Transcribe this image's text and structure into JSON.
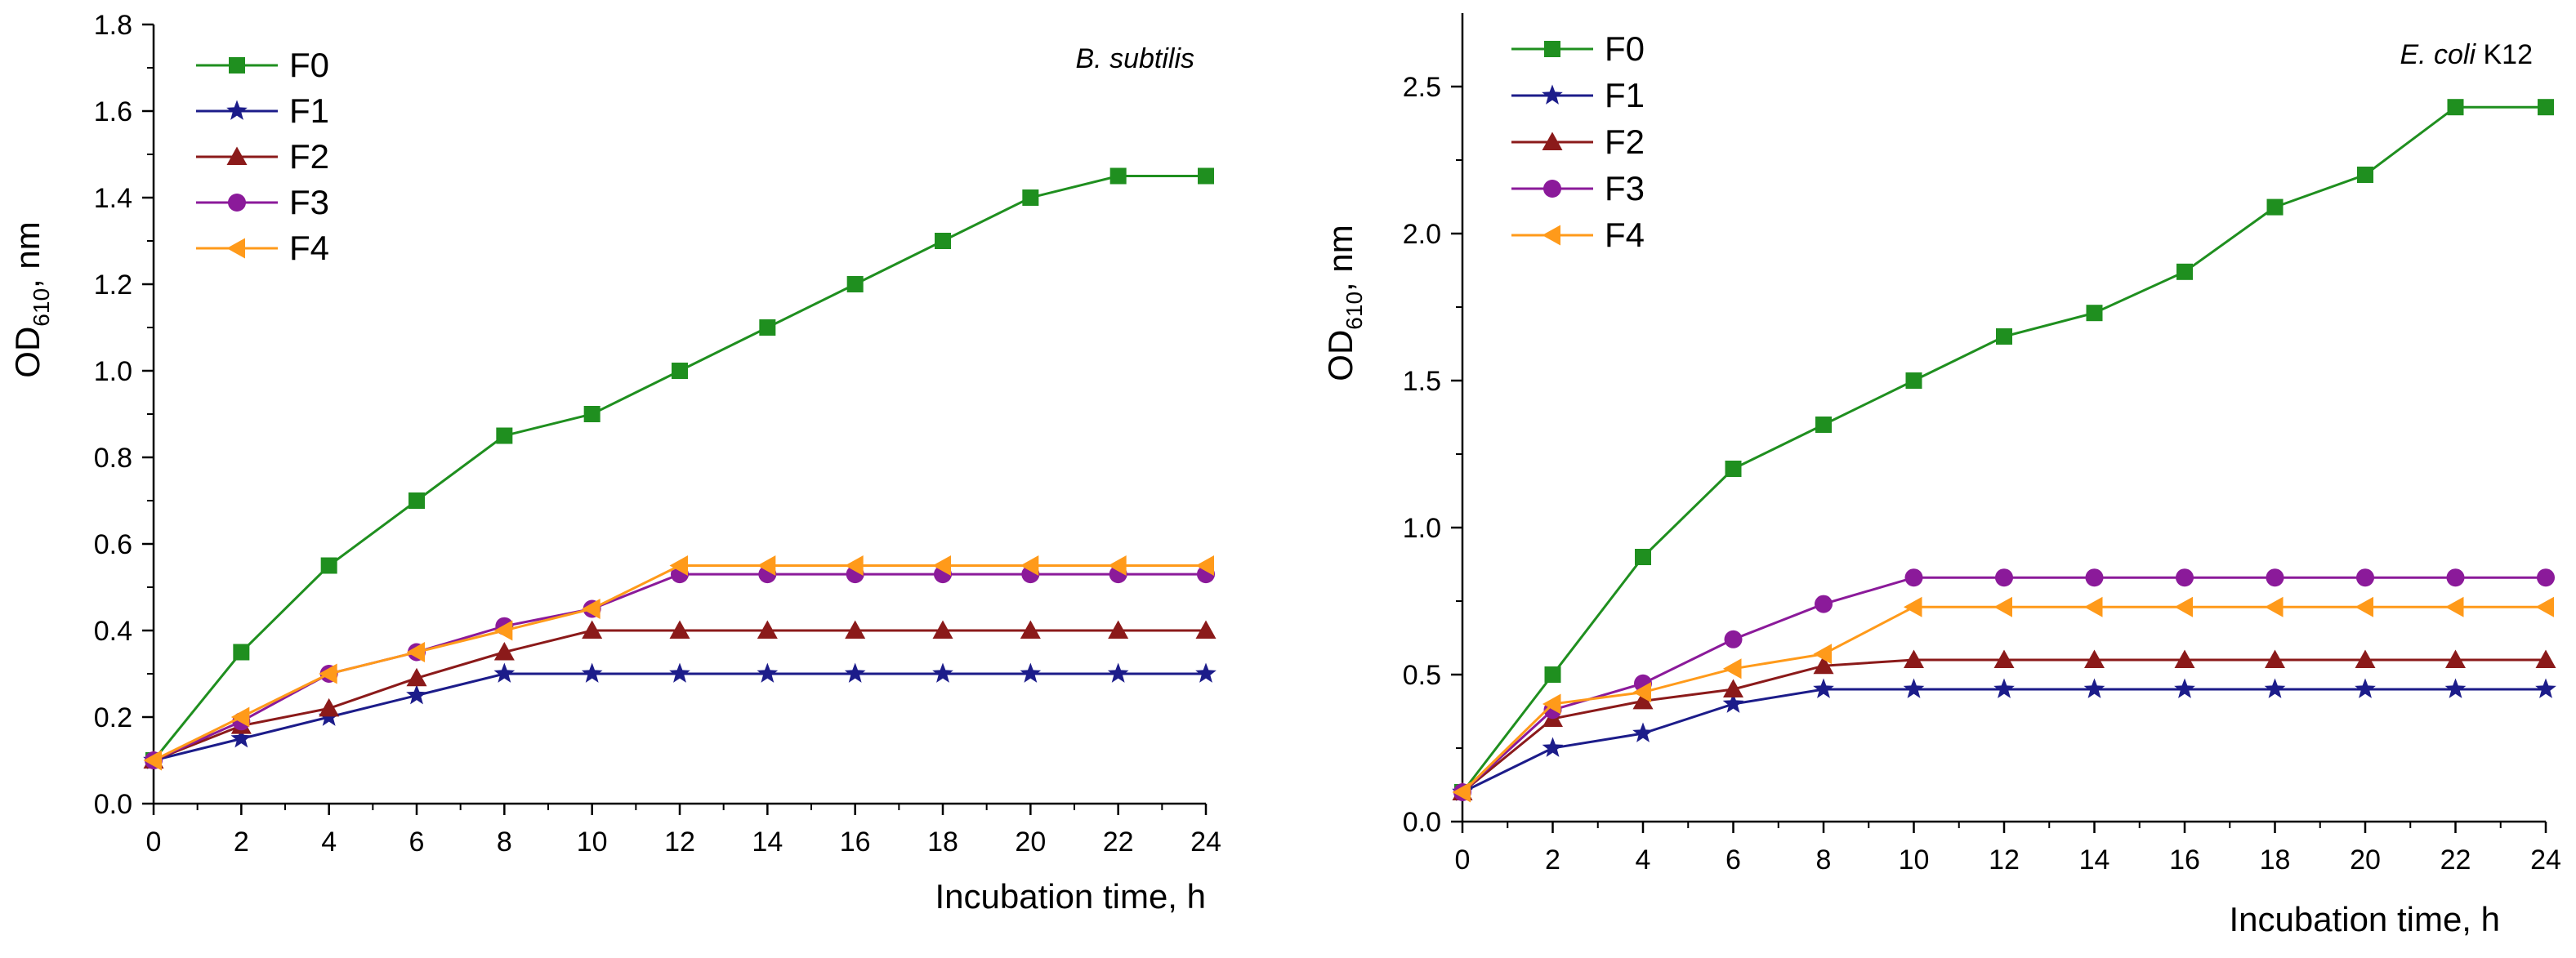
{
  "chart_data": [
    {
      "type": "line",
      "annotation_italic": "B. subtilis",
      "annotation_rest": "",
      "xlabel": "Incubation time, h",
      "ylabel_main": "OD",
      "ylabel_sub": "610",
      "ylabel_rest": ", nm",
      "xlim": [
        0,
        24
      ],
      "ylim": [
        0,
        1.8
      ],
      "xticks": [
        "0",
        "2",
        "4",
        "6",
        "8",
        "10",
        "12",
        "14",
        "16",
        "18",
        "20",
        "22",
        "24"
      ],
      "yticks": [
        "0.0",
        "0.2",
        "0.4",
        "0.6",
        "0.8",
        "1.0",
        "1.2",
        "1.4",
        "1.6",
        "1.8"
      ],
      "grid": false,
      "legend_position": "top-left",
      "x": [
        0,
        2,
        4,
        6,
        8,
        10,
        12,
        14,
        16,
        18,
        20,
        22,
        24
      ],
      "series": [
        {
          "name": "F0",
          "color": "#1f8f1f",
          "marker": "square",
          "values": [
            0.1,
            0.35,
            0.55,
            0.7,
            0.85,
            0.9,
            1.0,
            1.1,
            1.2,
            1.3,
            1.4,
            1.45,
            1.45
          ]
        },
        {
          "name": "F1",
          "color": "#1c1c8a",
          "marker": "star",
          "values": [
            0.1,
            0.15,
            0.2,
            0.25,
            0.3,
            0.3,
            0.3,
            0.3,
            0.3,
            0.3,
            0.3,
            0.3,
            0.3
          ]
        },
        {
          "name": "F2",
          "color": "#8b1a1a",
          "marker": "triangle",
          "values": [
            0.1,
            0.18,
            0.22,
            0.29,
            0.35,
            0.4,
            0.4,
            0.4,
            0.4,
            0.4,
            0.4,
            0.4,
            0.4
          ]
        },
        {
          "name": "F3",
          "color": "#8b1a9a",
          "marker": "circle",
          "values": [
            0.1,
            0.19,
            0.3,
            0.35,
            0.41,
            0.45,
            0.53,
            0.53,
            0.53,
            0.53,
            0.53,
            0.53,
            0.53
          ]
        },
        {
          "name": "F4",
          "color": "#ff9a1a",
          "marker": "tri-left",
          "values": [
            0.1,
            0.2,
            0.3,
            0.35,
            0.4,
            0.45,
            0.55,
            0.55,
            0.55,
            0.55,
            0.55,
            0.55,
            0.55
          ]
        }
      ]
    },
    {
      "type": "line",
      "annotation_italic": "E. coli",
      "annotation_rest": " K12",
      "xlabel": "Incubation time, h",
      "ylabel_main": "OD",
      "ylabel_sub": "610",
      "ylabel_rest": ", nm",
      "xlim": [
        0,
        24
      ],
      "ylim": [
        0,
        2.75
      ],
      "xticks": [
        "0",
        "2",
        "4",
        "6",
        "8",
        "10",
        "12",
        "14",
        "16",
        "18",
        "20",
        "22",
        "24"
      ],
      "yticks": [
        "0.0",
        "0.5",
        "1.0",
        "1.5",
        "2.0",
        "2.5"
      ],
      "grid": false,
      "legend_position": "top-left",
      "x": [
        0,
        2,
        4,
        6,
        8,
        10,
        12,
        14,
        16,
        18,
        20,
        22,
        24
      ],
      "series": [
        {
          "name": "F0",
          "color": "#1f8f1f",
          "marker": "square",
          "values": [
            0.1,
            0.5,
            0.9,
            1.2,
            1.35,
            1.5,
            1.65,
            1.73,
            1.87,
            2.09,
            2.2,
            2.43,
            2.43
          ]
        },
        {
          "name": "F1",
          "color": "#1c1c8a",
          "marker": "star",
          "values": [
            0.1,
            0.25,
            0.3,
            0.4,
            0.45,
            0.45,
            0.45,
            0.45,
            0.45,
            0.45,
            0.45,
            0.45,
            0.45
          ]
        },
        {
          "name": "F2",
          "color": "#8b1a1a",
          "marker": "triangle",
          "values": [
            0.1,
            0.35,
            0.41,
            0.45,
            0.53,
            0.55,
            0.55,
            0.55,
            0.55,
            0.55,
            0.55,
            0.55,
            0.55
          ]
        },
        {
          "name": "F3",
          "color": "#8b1a9a",
          "marker": "circle",
          "values": [
            0.1,
            0.38,
            0.47,
            0.62,
            0.74,
            0.83,
            0.83,
            0.83,
            0.83,
            0.83,
            0.83,
            0.83,
            0.83
          ]
        },
        {
          "name": "F4",
          "color": "#ff9a1a",
          "marker": "tri-left",
          "values": [
            0.1,
            0.4,
            0.44,
            0.52,
            0.57,
            0.73,
            0.73,
            0.73,
            0.73,
            0.73,
            0.73,
            0.73,
            0.73
          ]
        }
      ]
    }
  ]
}
